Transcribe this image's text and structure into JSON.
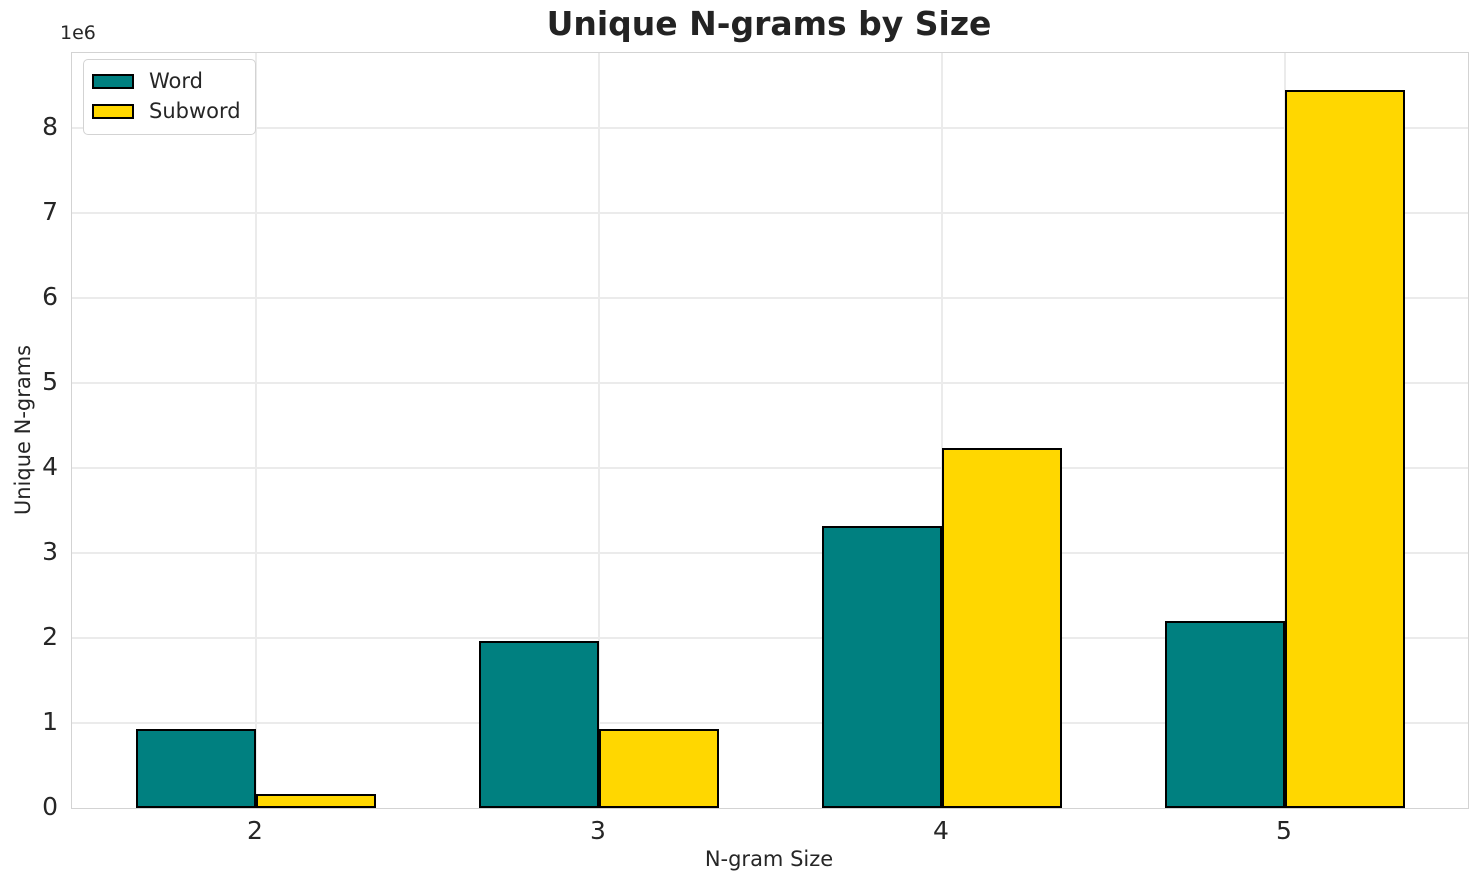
{
  "page": {
    "background": "#ffffff"
  },
  "chart_data": {
    "type": "bar",
    "title": "Unique N-grams by Size",
    "xlabel": "N-gram Size",
    "ylabel": "Unique N-grams",
    "y_offset_label": "1e6",
    "categories": [
      "2",
      "3",
      "4",
      "5"
    ],
    "series": [
      {
        "name": "Word",
        "color": "#008080",
        "values": [
          930000,
          1960000,
          3320000,
          2200000
        ]
      },
      {
        "name": "Subword",
        "color": "#FFD700",
        "values": [
          165000,
          930000,
          4230000,
          8450000
        ]
      }
    ],
    "bar_edge_color": "#000000",
    "ylim": [
      0,
      8880000
    ],
    "yticks": [
      0,
      1,
      2,
      3,
      4,
      5,
      6,
      7,
      8
    ],
    "y_tick_scale": 1000000,
    "grid": true,
    "legend_position": "upper left",
    "text_color": "#262626",
    "grid_color": "#ebebeb",
    "spine_color": "#d3d3d3"
  }
}
